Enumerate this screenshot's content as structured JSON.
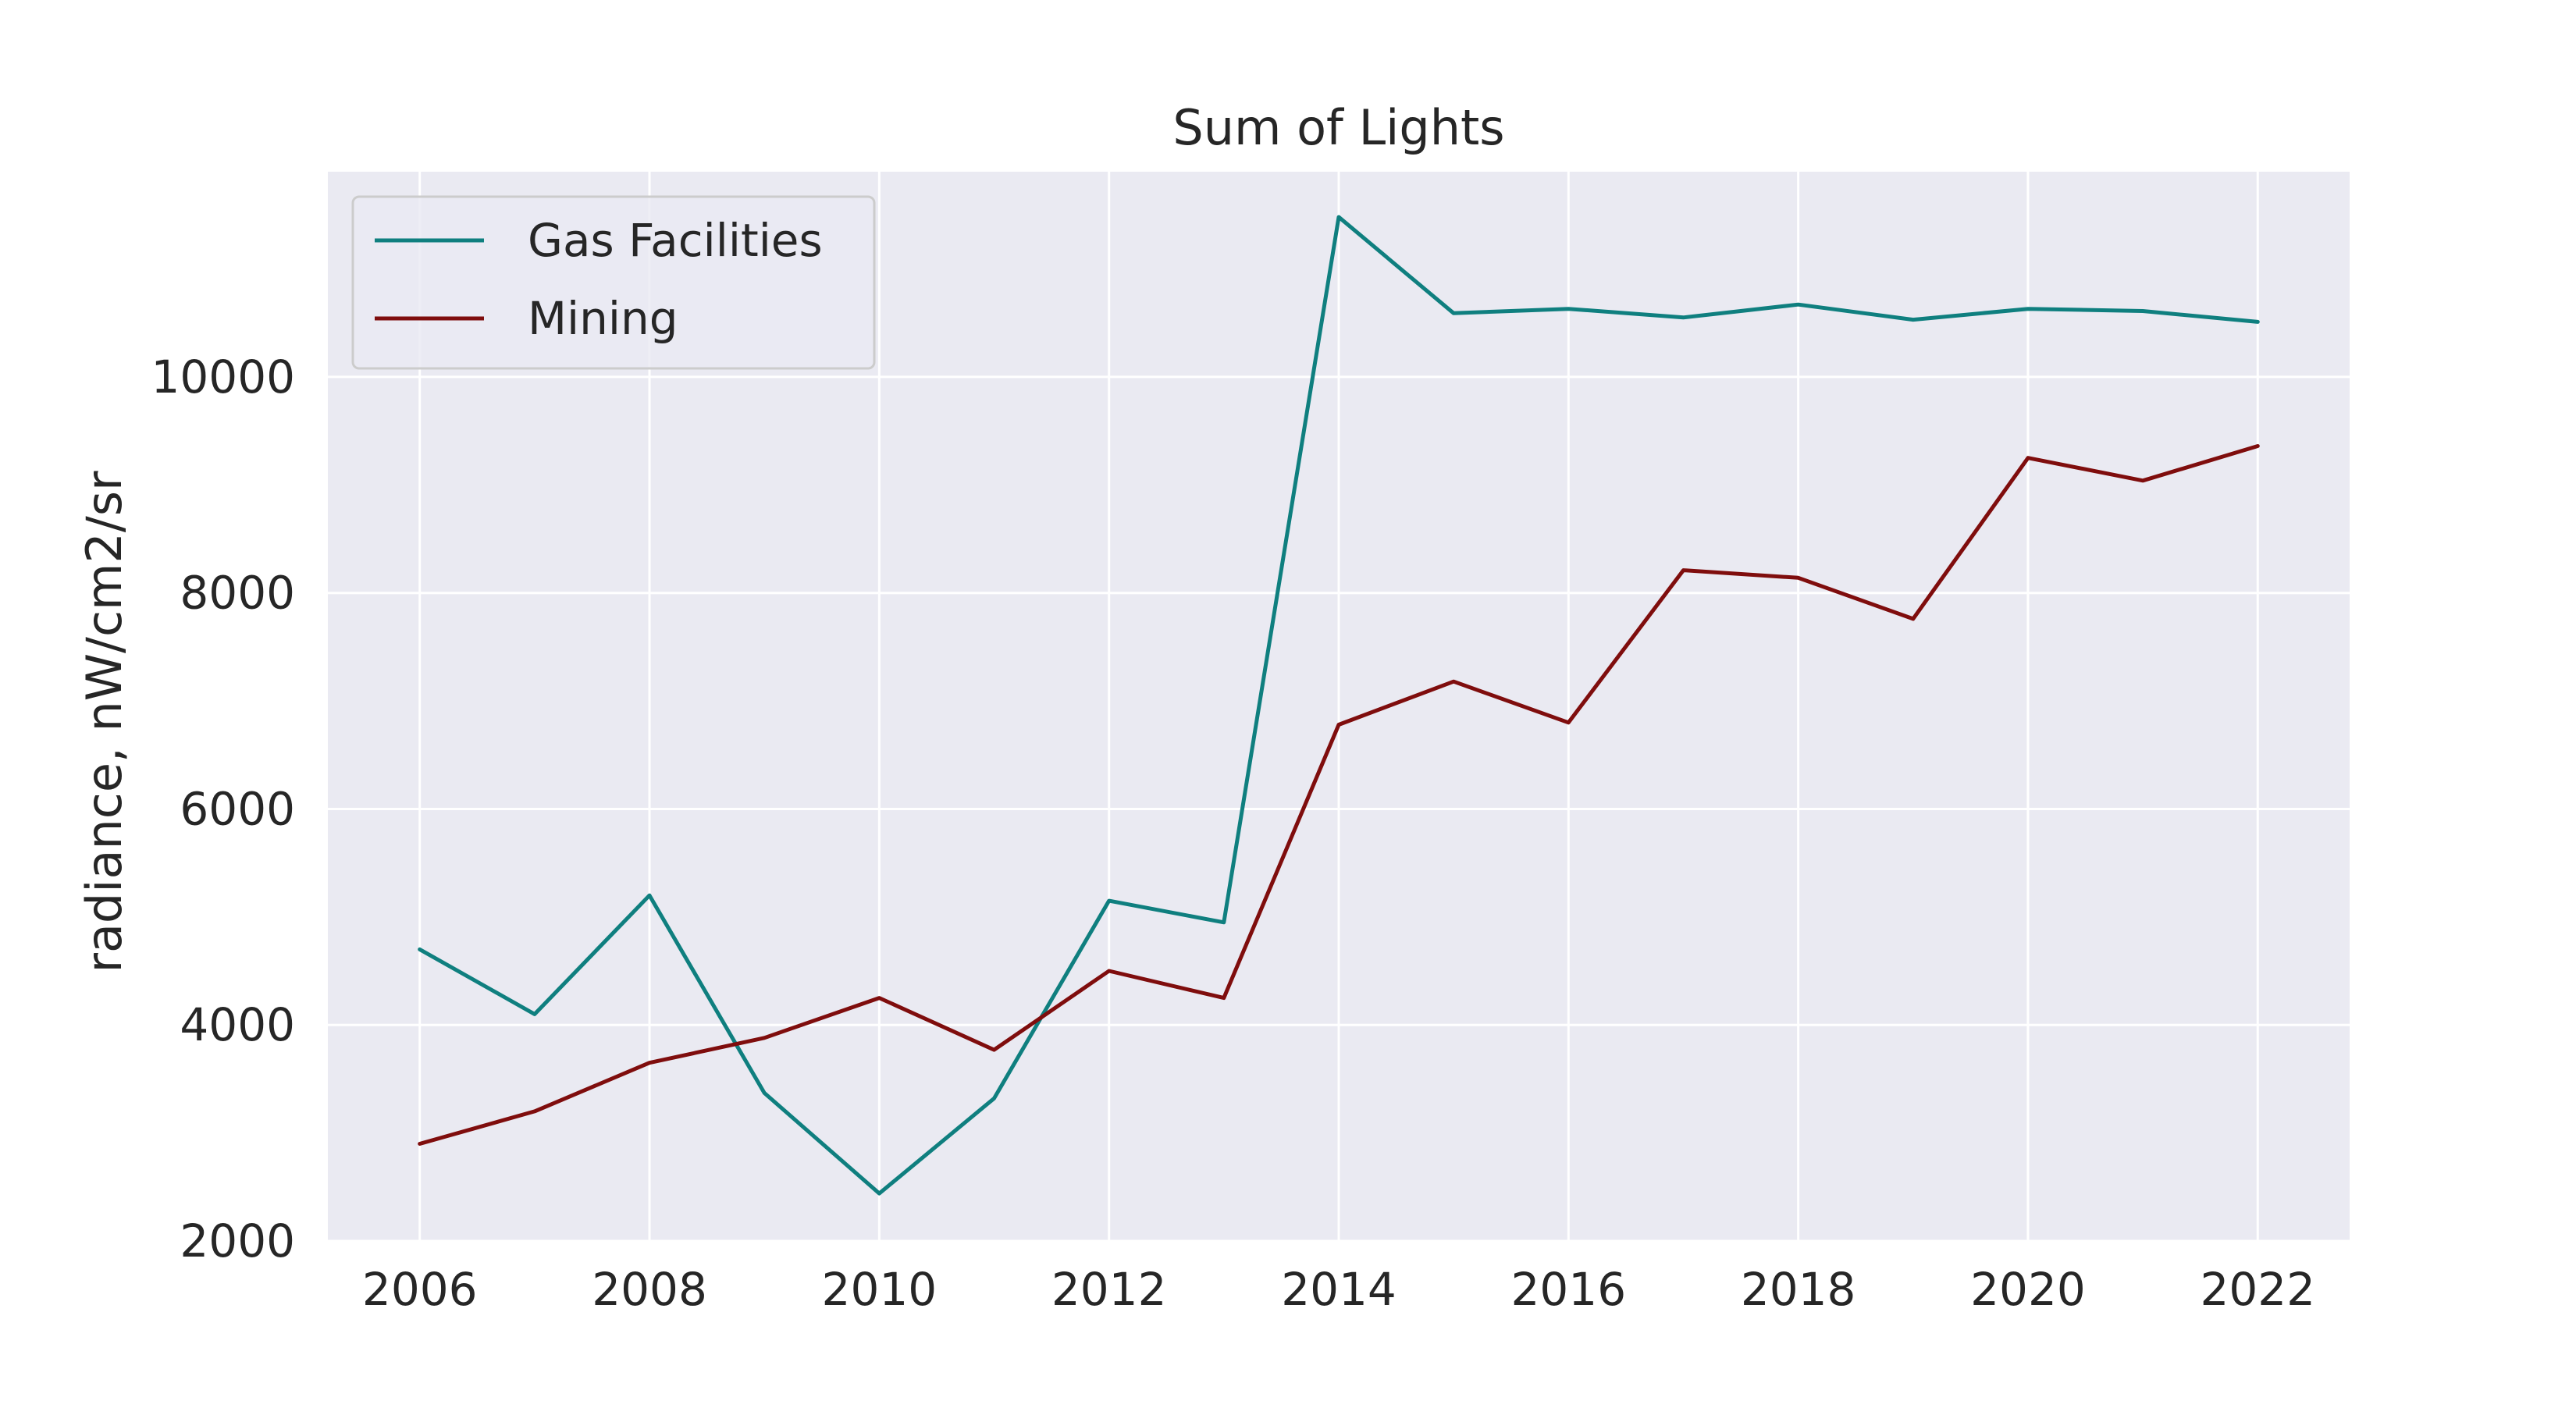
{
  "chart_data": {
    "type": "line",
    "title": "Sum of Lights",
    "xlabel": "",
    "ylabel": "radiance, nW/cm2/sr",
    "x": [
      2006,
      2007,
      2008,
      2009,
      2010,
      2011,
      2012,
      2013,
      2014,
      2015,
      2016,
      2017,
      2018,
      2019,
      2020,
      2021,
      2022
    ],
    "xlim": [
      2005.2,
      2022.8
    ],
    "ylim": [
      2000,
      11900
    ],
    "xticks": [
      "2006",
      "2008",
      "2010",
      "2012",
      "2014",
      "2016",
      "2018",
      "2020",
      "2022"
    ],
    "yticks": [
      "2000",
      "4000",
      "6000",
      "8000",
      "10000"
    ],
    "grid": true,
    "legend_position": "top-left",
    "series": [
      {
        "name": "Gas Facilities",
        "color": "#0f7f7f",
        "values": [
          4700,
          4100,
          5200,
          3370,
          2440,
          3320,
          5150,
          4950,
          11480,
          10590,
          10630,
          10550,
          10670,
          10530,
          10630,
          10610,
          10510
        ]
      },
      {
        "name": "Mining",
        "color": "#7f0d0d",
        "values": [
          2900,
          3200,
          3650,
          3880,
          4250,
          3770,
          4500,
          4250,
          6780,
          7180,
          6800,
          8210,
          8140,
          7760,
          9250,
          9040,
          9360
        ]
      }
    ]
  },
  "style": {
    "plot_background": "#eaeaf2",
    "grid_color": "#ffffff",
    "legend_background": "#eaeaf2",
    "legend_border": "#cccccc"
  }
}
